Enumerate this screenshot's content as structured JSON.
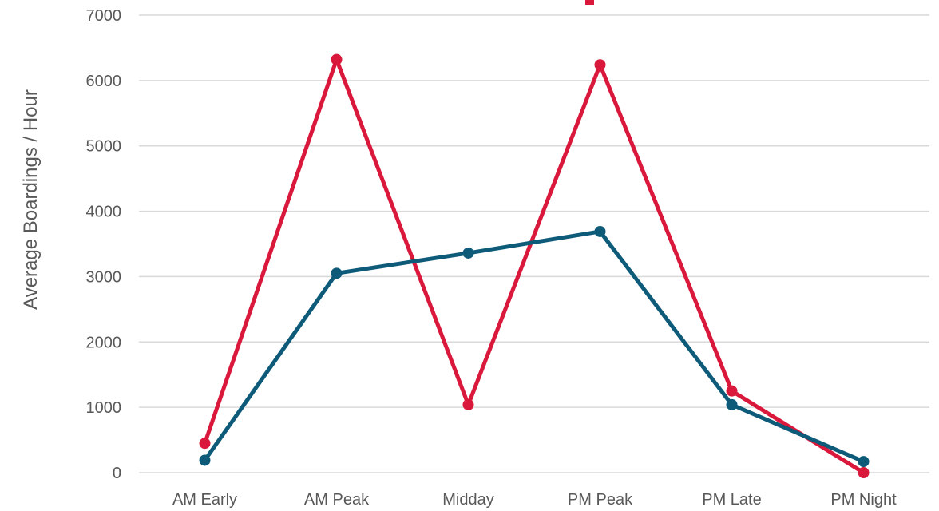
{
  "chart_data": {
    "type": "line",
    "title": "",
    "xlabel": "",
    "ylabel": "Average Boardings / Hour",
    "categories": [
      "AM Early",
      "AM Peak",
      "Midday",
      "PM Peak",
      "PM Late",
      "PM Night"
    ],
    "ylim": [
      0,
      7000
    ],
    "yticks": [
      0,
      1000,
      2000,
      3000,
      4000,
      5000,
      6000,
      7000
    ],
    "grid": true,
    "legend": "none",
    "series": [
      {
        "color": "#d9183b",
        "values": [
          450,
          6320,
          1040,
          6240,
          1250,
          0
        ]
      },
      {
        "color": "#0d5a79",
        "values": [
          190,
          3050,
          3360,
          3690,
          1040,
          170
        ]
      }
    ],
    "title_color": "#d9183b"
  }
}
